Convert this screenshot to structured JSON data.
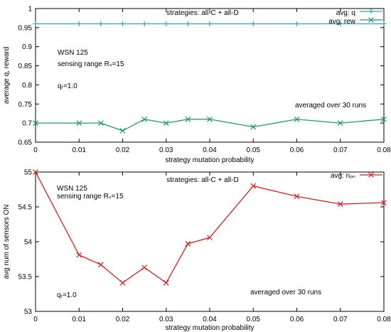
{
  "colors": {
    "q": "#29a3dc",
    "rew": "#1b9e6a",
    "n_on": "#e41a1c",
    "axis": "#000000"
  },
  "chart_data": [
    {
      "type": "line",
      "title": "strategies: all-C + all-D",
      "xlabel": "strategy mutation probability",
      "ylabel": "average q, reward",
      "xlim": [
        0,
        0.08
      ],
      "ylim": [
        0.65,
        1.0
      ],
      "xticks": [
        0,
        0.01,
        0.02,
        0.03,
        0.04,
        0.05,
        0.06,
        0.07,
        0.08
      ],
      "yticks": [
        0.65,
        0.7,
        0.75,
        0.8,
        0.85,
        0.9,
        0.95,
        1
      ],
      "grid": false,
      "legend_position": "top-right",
      "annotations": [
        "WSN 125",
        "sensing range Rₛ=15",
        "qᵣ=1.0",
        "averaged over 30 runs"
      ],
      "x": [
        0,
        0.01,
        0.015,
        0.02,
        0.025,
        0.03,
        0.035,
        0.04,
        0.05,
        0.06,
        0.07,
        0.08
      ],
      "series": [
        {
          "name": "avg: q",
          "marker": "plus",
          "color": "#29a3dc",
          "values": [
            0.96,
            0.96,
            0.96,
            0.96,
            0.96,
            0.96,
            0.96,
            0.96,
            0.96,
            0.96,
            0.96,
            0.96
          ]
        },
        {
          "name": "avg: rew",
          "marker": "x",
          "color": "#1b9e6a",
          "values": [
            0.7,
            0.7,
            0.7,
            0.68,
            0.71,
            0.7,
            0.71,
            0.71,
            0.69,
            0.71,
            0.7,
            0.71
          ]
        }
      ]
    },
    {
      "type": "line",
      "title": "strategies: all-C + all-D",
      "xlabel": "strategy mutation probability",
      "ylabel": "avg num of sensors ON",
      "xlim": [
        0,
        0.08
      ],
      "ylim": [
        53,
        55
      ],
      "xticks": [
        0,
        0.01,
        0.02,
        0.03,
        0.04,
        0.05,
        0.06,
        0.07,
        0.08
      ],
      "yticks": [
        53,
        53.5,
        54,
        54.5,
        55
      ],
      "grid": false,
      "legend_position": "top-right",
      "annotations": [
        "WSN 125",
        "sensing range Rₛ=15",
        "qᵣ=1.0",
        "averaged over 30 runs"
      ],
      "x": [
        0,
        0.01,
        0.015,
        0.02,
        0.025,
        0.03,
        0.035,
        0.04,
        0.05,
        0.06,
        0.07,
        0.08
      ],
      "series": [
        {
          "name": "avg: nₒₙ",
          "marker": "x",
          "color": "#e41a1c",
          "values": [
            55.0,
            53.81,
            53.67,
            53.41,
            53.63,
            53.41,
            53.97,
            54.06,
            54.8,
            54.65,
            54.54,
            54.56
          ]
        }
      ]
    }
  ]
}
